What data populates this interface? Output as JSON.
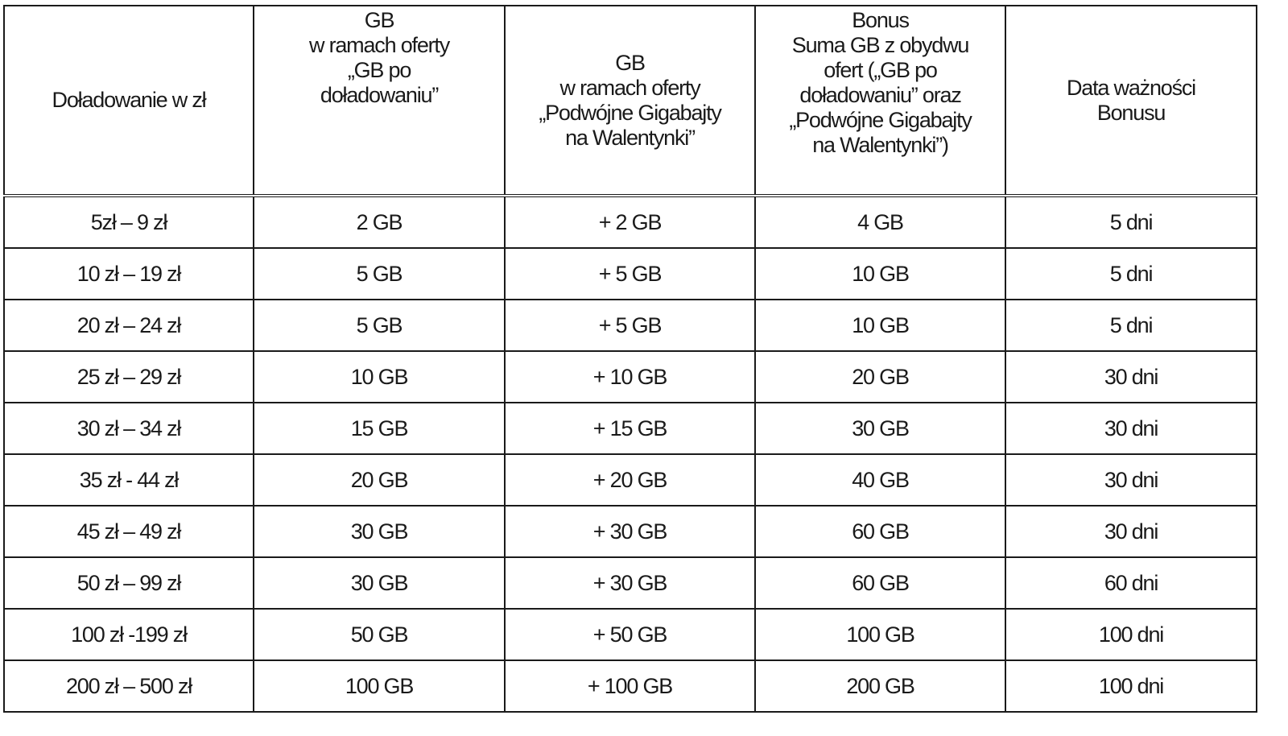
{
  "table": {
    "headers": [
      [
        "Doładowanie w zł"
      ],
      [
        "GB",
        "w ramach oferty",
        "„GB po",
        "doładowaniu”"
      ],
      [
        "GB",
        "w ramach oferty",
        "„Podwójne Gigabajty",
        "na Walentynki”"
      ],
      [
        "Bonus",
        "Suma GB z obydwu",
        "ofert („GB po",
        "doładowaniu” oraz",
        "„Podwójne Gigabajty",
        "na Walentynki”)"
      ],
      [
        "Data ważności",
        "Bonusu"
      ]
    ],
    "rows": [
      [
        "5zł – 9 zł",
        "2 GB",
        "+ 2 GB",
        "4 GB",
        "5 dni"
      ],
      [
        "10 zł – 19 zł",
        "5 GB",
        "+ 5 GB",
        "10 GB",
        "5  dni"
      ],
      [
        "20 zł – 24 zł",
        "5 GB",
        "+ 5 GB",
        "10 GB",
        "5 dni"
      ],
      [
        "25 zł – 29 zł",
        "10 GB",
        "+ 10 GB",
        "20 GB",
        "30 dni"
      ],
      [
        "30 zł – 34 zł",
        "15 GB",
        "+ 15 GB",
        "30 GB",
        "30 dni"
      ],
      [
        "35 zł - 44 zł",
        "20 GB",
        "+ 20 GB",
        "40 GB",
        "30 dni"
      ],
      [
        "45 zł – 49 zł",
        "30 GB",
        "+ 30 GB",
        "60 GB",
        "30 dni"
      ],
      [
        "50 zł – 99 zł",
        "30 GB",
        "+ 30 GB",
        "60 GB",
        "60 dni"
      ],
      [
        "100 zł -199 zł",
        "50 GB",
        "+ 50 GB",
        "100 GB",
        "100 dni"
      ],
      [
        "200 zł – 500 zł",
        "100 GB",
        "+ 100 GB",
        "200 GB",
        "100 dni"
      ]
    ]
  }
}
